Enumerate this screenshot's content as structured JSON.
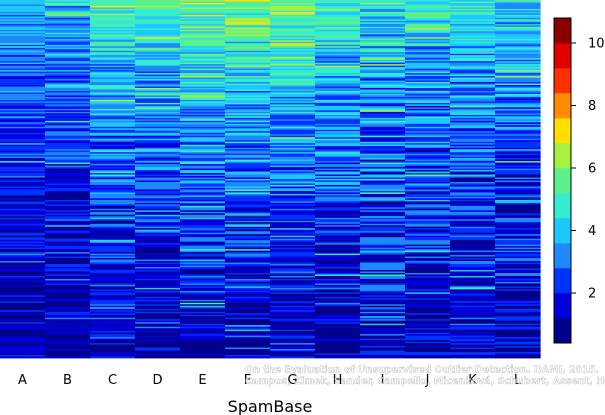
{
  "chart_data": {
    "type": "heatmap",
    "xlabel": "SpamBase",
    "ylabel": "",
    "columns": [
      "A",
      "B",
      "C",
      "D",
      "E",
      "F",
      "G",
      "H",
      "I",
      "J",
      "K",
      "L"
    ],
    "rows_per_column_approx": 240,
    "column_profiles": [
      {
        "column": "A",
        "top_value": 4.0,
        "bottom_value": 0.8,
        "noise": 1.1
      },
      {
        "column": "B",
        "top_value": 4.0,
        "bottom_value": 0.8,
        "noise": 1.1
      },
      {
        "column": "C",
        "top_value": 5.6,
        "bottom_value": 1.0,
        "noise": 1.3
      },
      {
        "column": "D",
        "top_value": 5.4,
        "bottom_value": 0.9,
        "noise": 1.3
      },
      {
        "column": "E",
        "top_value": 6.3,
        "bottom_value": 1.0,
        "noise": 1.4
      },
      {
        "column": "F",
        "top_value": 6.0,
        "bottom_value": 1.0,
        "noise": 1.4
      },
      {
        "column": "G",
        "top_value": 6.3,
        "bottom_value": 1.0,
        "noise": 1.4
      },
      {
        "column": "H",
        "top_value": 5.4,
        "bottom_value": 1.0,
        "noise": 1.4
      },
      {
        "column": "I",
        "top_value": 4.8,
        "bottom_value": 1.4,
        "noise": 1.6
      },
      {
        "column": "J",
        "top_value": 5.2,
        "bottom_value": 1.0,
        "noise": 1.6
      },
      {
        "column": "K",
        "top_value": 4.8,
        "bottom_value": 1.2,
        "noise": 1.5
      },
      {
        "column": "L",
        "top_value": 4.6,
        "bottom_value": 1.2,
        "noise": 1.5
      }
    ],
    "colorbar": {
      "range": [
        0.4,
        10.8
      ],
      "ticks": [
        2,
        4,
        6,
        8,
        10
      ],
      "colors": [
        "#00008b",
        "#0000dd",
        "#0033ff",
        "#1e88ff",
        "#1ec8ff",
        "#36ecd0",
        "#5cf08a",
        "#a8f040",
        "#ffe000",
        "#ff8c00",
        "#ff3000",
        "#e00000",
        "#880000"
      ]
    },
    "grid": false,
    "legend": "colorbar-right"
  },
  "credit": {
    "line1": "On the Evaluation of Unsupervised Outlier Detection. DAMI, 2015.",
    "line2": "Campos, Zimek, Sander, Campello, Micenková, Schubert, Assent, Houle"
  }
}
